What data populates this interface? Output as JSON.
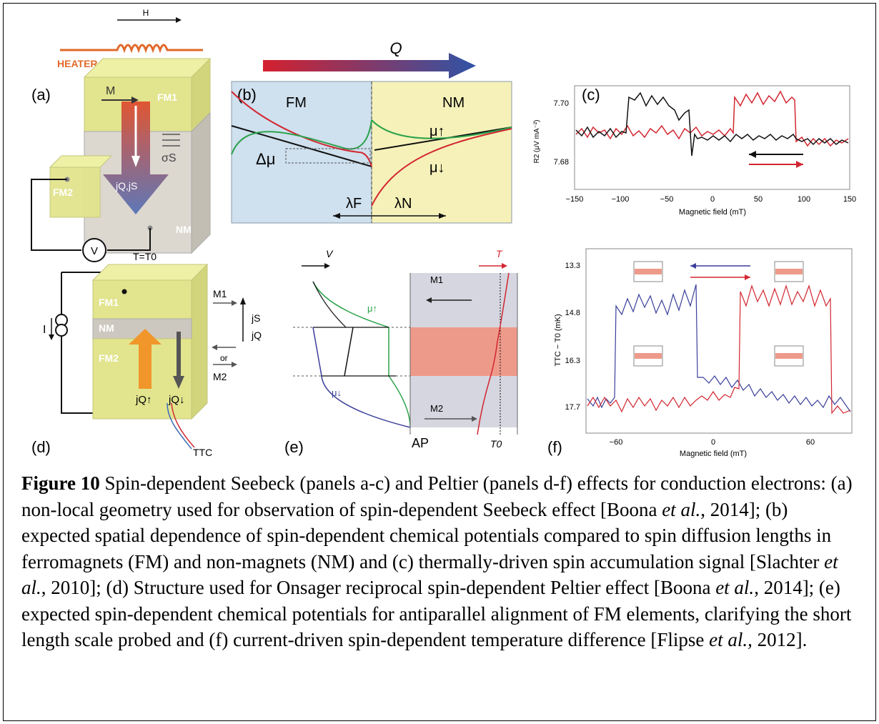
{
  "panels": {
    "a": {
      "label": "(a)",
      "heater": "HEATER",
      "field": "H",
      "magnetization": "M",
      "fm1": "FM1",
      "fm2": "FM2",
      "nm": "NM",
      "spin_current": "σS",
      "currents": "jQ,jS",
      "voltmeter": "V"
    },
    "b": {
      "label": "(b)",
      "heat": "Q",
      "fm": "FM",
      "nm": "NM",
      "mu_up": "μ↑",
      "mu_down": "μ↓",
      "delta_mu": "Δμ",
      "lambda_f": "λF",
      "lambda_n": "λN"
    },
    "c": {
      "label": "(c)",
      "xlabel": "Magnetic field (mT)",
      "ylabel": "R2 (μV mA⁻²)",
      "xticks": [
        "−150",
        "−100",
        "−50",
        "0",
        "50",
        "100",
        "150"
      ],
      "yticks": [
        "7.70",
        "7.68"
      ]
    },
    "d": {
      "label": "(d)",
      "temp": "T=T0",
      "fm1": "FM1",
      "nm": "NM",
      "fm2": "FM2",
      "current_source": "I",
      "m1": "M1",
      "m2": "M2",
      "or": "or",
      "js": "jS",
      "jq": "jQ",
      "jq_up": "jQ↑",
      "jq_down": "jQ↓",
      "ttc": "TTC"
    },
    "e": {
      "label": "(e)",
      "v": "V",
      "t": "T",
      "m1": "M1",
      "m2": "M2",
      "ap": "AP",
      "t0": "T0",
      "mu_up": "μ↑",
      "mu_down": "μ↓"
    },
    "f": {
      "label": "(f)",
      "xlabel": "Magnetic field (mT)",
      "ylabel": "TTC − T0 (mK)",
      "xticks": [
        "−60",
        "0",
        "60"
      ],
      "yticks": [
        "13.3",
        "14.8",
        "16.3",
        "17.7"
      ]
    }
  },
  "caption": {
    "figure_label": "Figure 10",
    "s1": " Spin-dependent Seebeck (panels a-c) and Peltier (panels d-f) effects for conduction electrons: (a) non-local geometry used for observation of spin-dependent Seebeck effect [Boona ",
    "etal1": "et al.",
    "s2": ", 2014]; (b) expected spatial dependence of spin-dependent chemical potentials compared to spin diffusion lengths in ferromagnets (FM) and non-magnets (NM) and (c) thermally-driven spin accumulation signal [Slachter ",
    "etal2": "et al.",
    "s3": ", 2010]; (d) Structure used for Onsager reciprocal spin-dependent Peltier effect [Boona ",
    "etal3": "et al.",
    "s4": ", 2014]; (e) expected spin-dependent chemical potentials for antiparallel alignment of FM elements, clarifying the short length scale probed and (f) current-driven spin-dependent temperature difference [Flipse ",
    "etal4": "et al.,",
    "s5": " 2012]."
  },
  "colors": {
    "red": "#d22630",
    "black": "#111111",
    "blue": "#3b3f9a",
    "green": "#2aa24a",
    "fm_yellow": "#e6e89a",
    "nm_blue": "#cfe0ee"
  }
}
